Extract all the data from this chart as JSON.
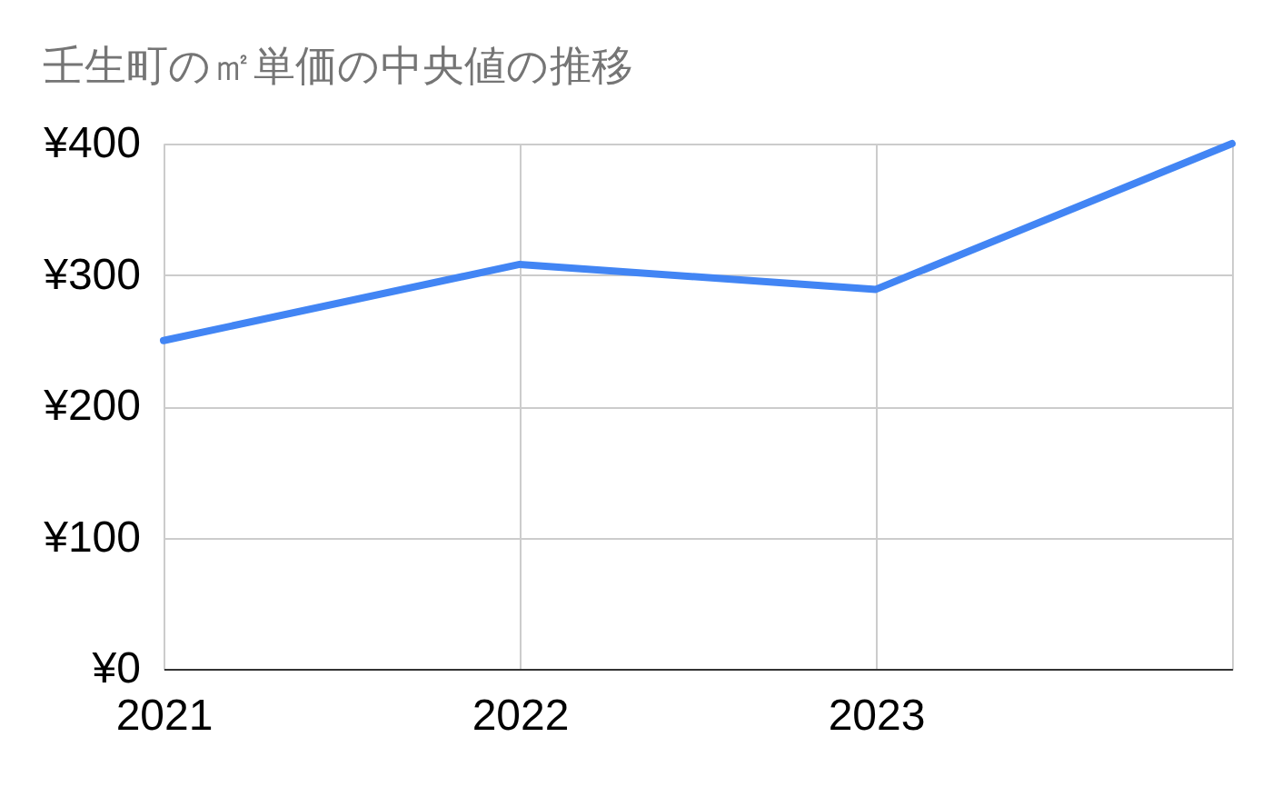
{
  "chart_data": {
    "type": "line",
    "title": "壬生町の㎡単価の中央値の推移",
    "x": [
      2021,
      2022,
      2023,
      2024
    ],
    "series": [
      {
        "color": "#4285f4",
        "values": [
          250,
          308,
          289,
          400
        ]
      }
    ],
    "xlim": [
      2021,
      2024
    ],
    "xticks": [
      2021,
      2022,
      2023,
      {
        "value": 2024,
        "label": null
      }
    ],
    "ylim": [
      0,
      400
    ],
    "yticks": [
      {
        "value": 0,
        "label": "¥0"
      },
      {
        "value": 100,
        "label": "¥100"
      },
      {
        "value": 200,
        "label": "¥200"
      },
      {
        "value": 300,
        "label": "¥300"
      },
      {
        "value": 400,
        "label": "¥400"
      }
    ],
    "grid": true,
    "marker": "none",
    "line_style": "solid"
  }
}
